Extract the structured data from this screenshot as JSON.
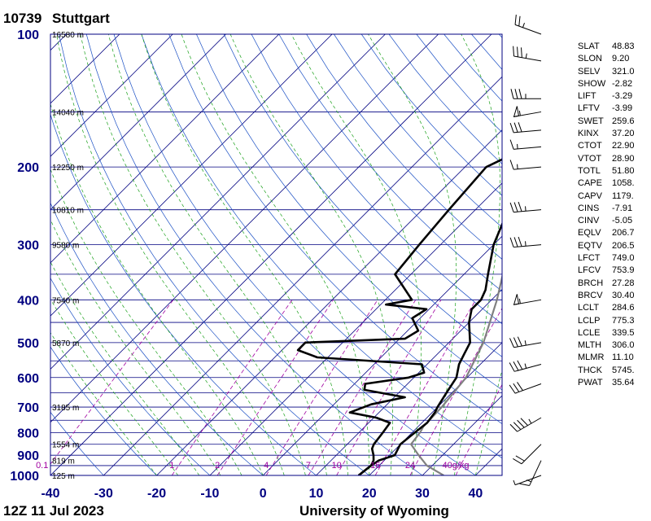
{
  "header": {
    "station_id": "10739",
    "station_name": "Stuttgart",
    "time_label": "12Z 11 Jul 2023",
    "source_label": "University of Wyoming"
  },
  "chart_data": {
    "type": "skew-t",
    "x_ticks": [
      -40,
      -30,
      -20,
      -10,
      0,
      10,
      20,
      30,
      40
    ],
    "xlim": [
      -40,
      45
    ],
    "pressure_ticks": [
      100,
      200,
      300,
      400,
      500,
      600,
      700,
      800,
      900,
      1000
    ],
    "ylim_hpa": [
      1000,
      100
    ],
    "height_labels": [
      {
        "p": 100,
        "label": "16580 m"
      },
      {
        "p": 150,
        "label": "14040 m"
      },
      {
        "p": 200,
        "label": "12250 m"
      },
      {
        "p": 250,
        "label": "10810 m"
      },
      {
        "p": 300,
        "label": "9580 m"
      },
      {
        "p": 400,
        "label": "7540 m"
      },
      {
        "p": 500,
        "label": "5870 m"
      },
      {
        "p": 700,
        "label": "3185 m"
      },
      {
        "p": 850,
        "label": "1554 m"
      },
      {
        "p": 925,
        "label": "819 m"
      },
      {
        "p": 1000,
        "label": "125 m"
      }
    ],
    "mixing_ratio_labels": [
      "0.1",
      "1",
      "2",
      "4",
      "7",
      "10",
      "16",
      "24",
      "40g/kg"
    ],
    "mixing_ratio_values": [
      0.1,
      1,
      2,
      4,
      7,
      10,
      16,
      24,
      40
    ],
    "temperature_profile": [
      [
        1000,
        18.0
      ],
      [
        950,
        18.5
      ],
      [
        925,
        19.0
      ],
      [
        900,
        21.0
      ],
      [
        850,
        20.0
      ],
      [
        800,
        20.5
      ],
      [
        760,
        21.0
      ],
      [
        720,
        20.5
      ],
      [
        700,
        20.0
      ],
      [
        650,
        19.0
      ],
      [
        600,
        18.0
      ],
      [
        560,
        16.0
      ],
      [
        530,
        15.0
      ],
      [
        500,
        14.0
      ],
      [
        450,
        10.0
      ],
      [
        420,
        8.0
      ],
      [
        400,
        8.0
      ],
      [
        380,
        7.0
      ],
      [
        350,
        4.5
      ],
      [
        300,
        0.0
      ],
      [
        260,
        -3.0
      ],
      [
        230,
        -6.0
      ],
      [
        200,
        -6.0
      ],
      [
        180,
        -5.5
      ],
      [
        170,
        -4.0
      ],
      [
        160,
        0.0
      ],
      [
        150,
        6.0
      ],
      [
        130,
        9.0
      ],
      [
        115,
        14.0
      ],
      [
        105,
        18.0
      ],
      [
        100,
        20.0
      ]
    ],
    "dewpoint_profile": [
      [
        1000,
        18.0
      ],
      [
        950,
        18.5
      ],
      [
        925,
        18.0
      ],
      [
        900,
        17.0
      ],
      [
        870,
        15.5
      ],
      [
        850,
        15.0
      ],
      [
        800,
        14.5
      ],
      [
        760,
        14.0
      ],
      [
        740,
        10.5
      ],
      [
        720,
        4.5
      ],
      [
        690,
        7.0
      ],
      [
        665,
        12.0
      ],
      [
        640,
        3.0
      ],
      [
        620,
        2.0
      ],
      [
        600,
        9.0
      ],
      [
        585,
        11.0
      ],
      [
        560,
        9.0
      ],
      [
        540,
        -12.0
      ],
      [
        520,
        -17.0
      ],
      [
        500,
        -17.0
      ],
      [
        490,
        1.0
      ],
      [
        470,
        2.0
      ],
      [
        440,
        -1.5
      ],
      [
        420,
        -0.5
      ],
      [
        410,
        -9.0
      ],
      [
        400,
        -5.0
      ],
      [
        350,
        -13.0
      ],
      [
        300,
        -14.0
      ],
      [
        250,
        -15.0
      ],
      [
        200,
        -16.0
      ],
      [
        190,
        -14.0
      ],
      [
        170,
        -13.0
      ],
      [
        160,
        -15.0
      ],
      [
        150,
        -17.0
      ],
      [
        130,
        -14.0
      ],
      [
        115,
        -11.0
      ],
      [
        100,
        -7.0
      ]
    ],
    "parcel_profile": [
      [
        1000,
        34.0
      ],
      [
        950,
        29.0
      ],
      [
        900,
        25.5
      ],
      [
        850,
        22.0
      ],
      [
        800,
        21.5
      ],
      [
        775,
        21.0
      ],
      [
        700,
        20.8
      ],
      [
        600,
        19.8
      ],
      [
        500,
        16.5
      ],
      [
        400,
        11.0
      ],
      [
        300,
        3.0
      ],
      [
        250,
        -2.5
      ],
      [
        200,
        -8.5
      ],
      [
        170,
        -10.5
      ],
      [
        150,
        -12.0
      ],
      [
        125,
        -15.0
      ],
      [
        100,
        -17.0
      ]
    ],
    "wind_barbs": [
      {
        "p": 100,
        "dir": 290,
        "spd": 25
      },
      {
        "p": 115,
        "dir": 280,
        "spd": 35
      },
      {
        "p": 140,
        "dir": 270,
        "spd": 35
      },
      {
        "p": 150,
        "dir": 260,
        "spd": 55
      },
      {
        "p": 165,
        "dir": 265,
        "spd": 30
      },
      {
        "p": 180,
        "dir": 265,
        "spd": 15
      },
      {
        "p": 200,
        "dir": 265,
        "spd": 15
      },
      {
        "p": 250,
        "dir": 265,
        "spd": 35
      },
      {
        "p": 300,
        "dir": 265,
        "spd": 35
      },
      {
        "p": 400,
        "dir": 260,
        "spd": 55
      },
      {
        "p": 500,
        "dir": 260,
        "spd": 35
      },
      {
        "p": 560,
        "dir": 255,
        "spd": 35
      },
      {
        "p": 620,
        "dir": 250,
        "spd": 30
      },
      {
        "p": 740,
        "dir": 240,
        "spd": 45
      },
      {
        "p": 850,
        "dir": 225,
        "spd": 20
      },
      {
        "p": 925,
        "dir": 205,
        "spd": 15
      },
      {
        "p": 1000,
        "dir": 250,
        "spd": 5
      }
    ]
  },
  "indices": [
    {
      "key": "SLAT",
      "value": "48.83"
    },
    {
      "key": "SLON",
      "value": "9.20"
    },
    {
      "key": "SELV",
      "value": "321.0"
    },
    {
      "key": "SHOW",
      "value": "-2.82"
    },
    {
      "key": "LIFT",
      "value": "-3.29"
    },
    {
      "key": "LFTV",
      "value": "-3.99"
    },
    {
      "key": "SWET",
      "value": "259.6"
    },
    {
      "key": "KINX",
      "value": "37.20"
    },
    {
      "key": "CTOT",
      "value": "22.90"
    },
    {
      "key": "VTOT",
      "value": "28.90"
    },
    {
      "key": "TOTL",
      "value": "51.80"
    },
    {
      "key": "CAPE",
      "value": "1058."
    },
    {
      "key": "CAPV",
      "value": "1179."
    },
    {
      "key": "CINS",
      "value": "-7.91"
    },
    {
      "key": "CINV",
      "value": "-5.05"
    },
    {
      "key": "EQLV",
      "value": "206.7"
    },
    {
      "key": "EQTV",
      "value": "206.5"
    },
    {
      "key": "LFCT",
      "value": "749.0"
    },
    {
      "key": "LFCV",
      "value": "753.9"
    },
    {
      "key": "BRCH",
      "value": "27.28"
    },
    {
      "key": "BRCV",
      "value": "30.40"
    },
    {
      "key": "LCLT",
      "value": "284.6"
    },
    {
      "key": "LCLP",
      "value": "775.3"
    },
    {
      "key": "LCLE",
      "value": "339.5"
    },
    {
      "key": "MLTH",
      "value": "306.0"
    },
    {
      "key": "MLMR",
      "value": "11.10"
    },
    {
      "key": "THCK",
      "value": "5745."
    },
    {
      "key": "PWAT",
      "value": "35.64"
    }
  ],
  "colors": {
    "isobar": "#000080",
    "isotherm": "#000080",
    "dry_adiabat": "#1a4fc4",
    "moist_adiabat": "#1aa01a",
    "mixing_ratio": "#a000a0",
    "temperature": "#000000",
    "parcel": "#808080",
    "axis_label": "#000080"
  }
}
